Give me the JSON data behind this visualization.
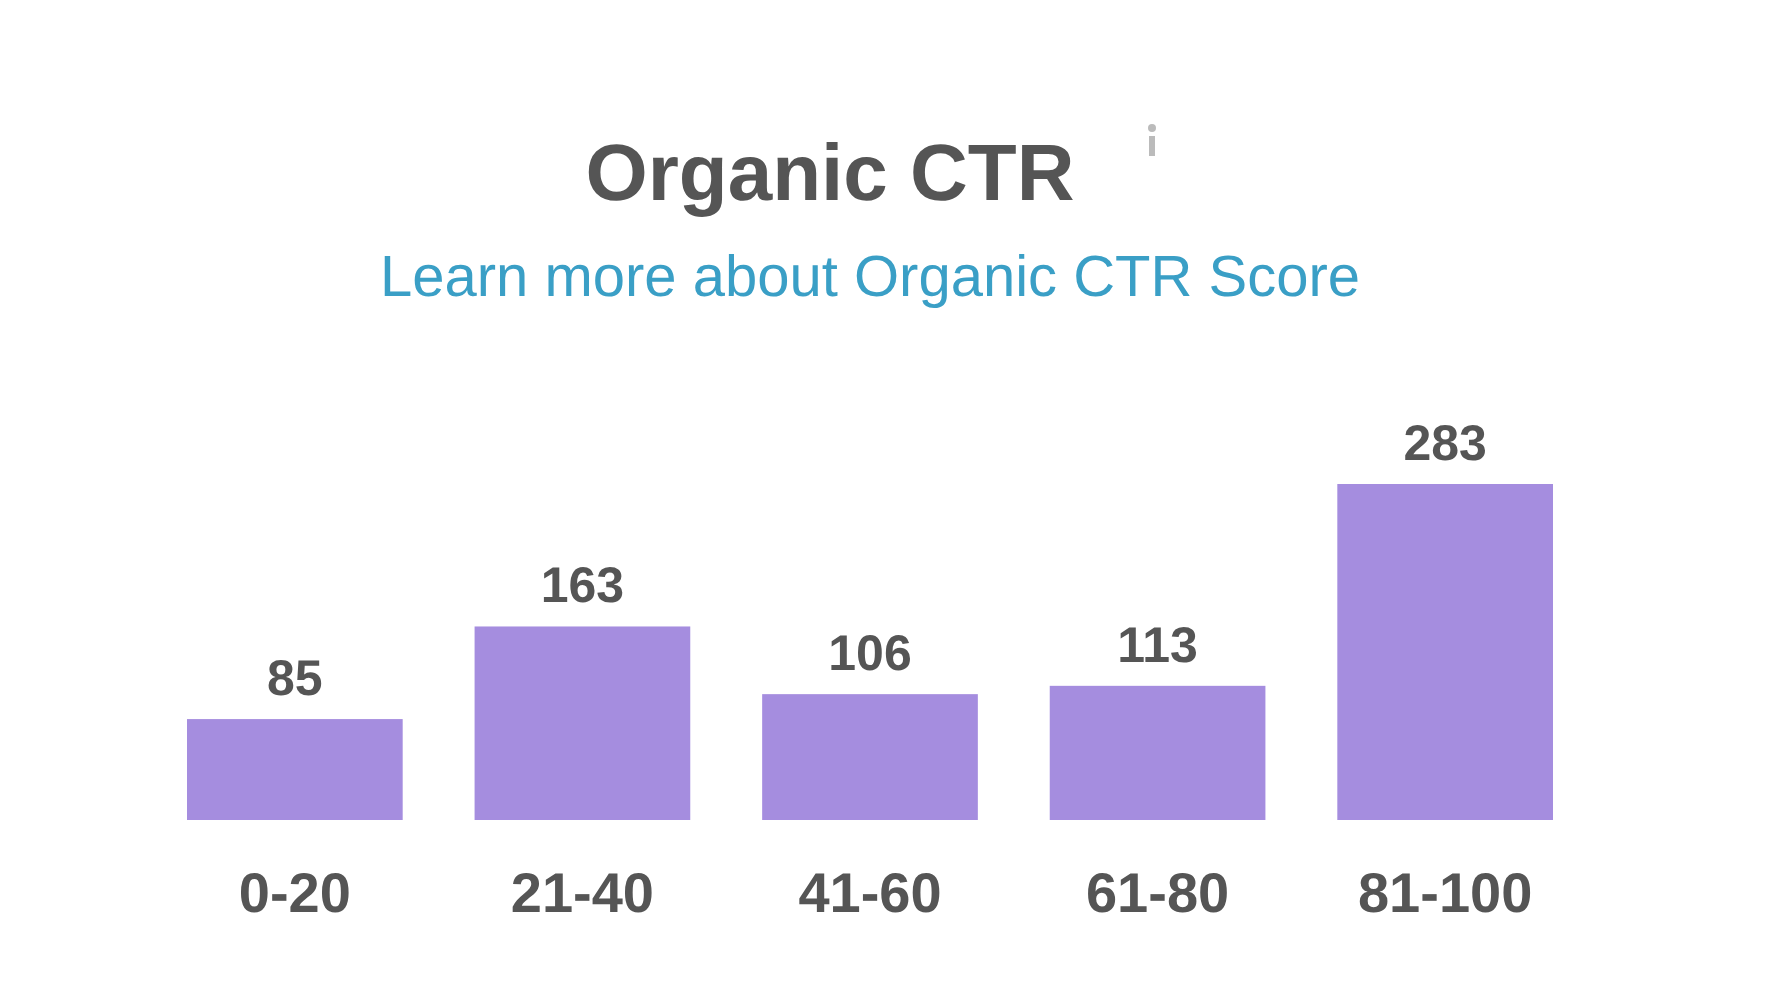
{
  "chart_data": {
    "type": "bar",
    "title": "Organic CTR",
    "subtitle": "Learn more about Organic CTR Score",
    "categories": [
      "0-20",
      "21-40",
      "41-60",
      "61-80",
      "81-100"
    ],
    "values": [
      85,
      163,
      106,
      113,
      283
    ],
    "color": "#a58ddf",
    "data_labels": true
  }
}
